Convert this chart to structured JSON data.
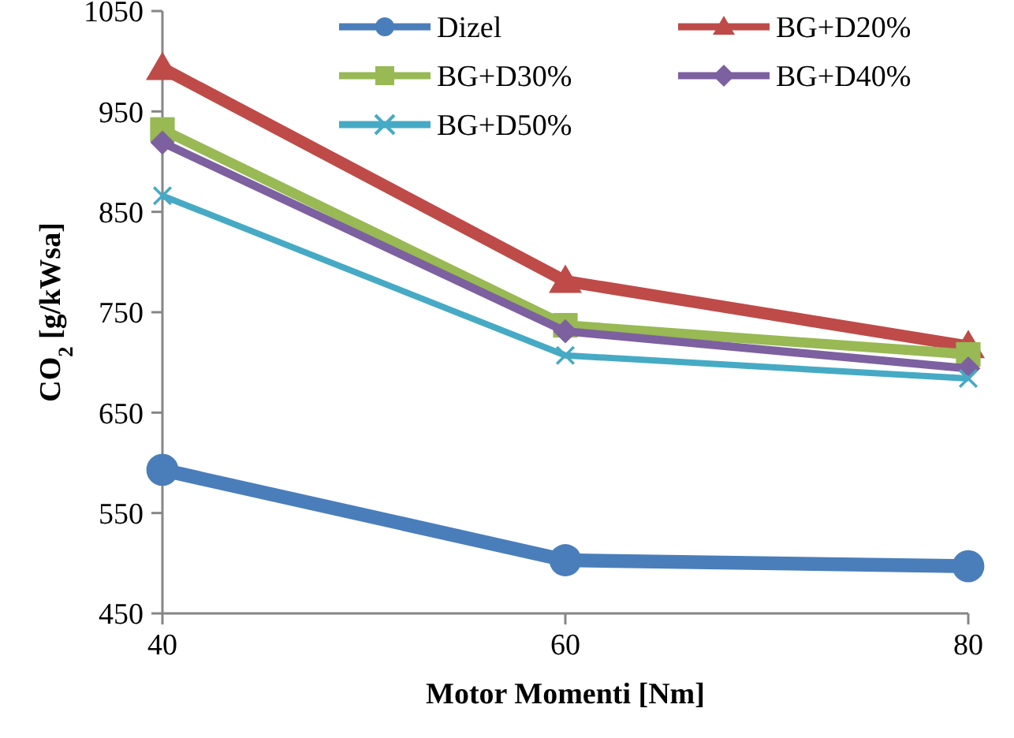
{
  "chart_data": {
    "type": "line",
    "xlabel": "Motor Momenti [Nm]",
    "ylabel": "CO$_{2}$ [g/kWsa]",
    "x": [
      40,
      60,
      80
    ],
    "xlim": [
      40,
      80
    ],
    "xticks": [
      40,
      60,
      80
    ],
    "ylim": [
      450,
      1050
    ],
    "yticks": [
      450,
      550,
      650,
      750,
      850,
      950,
      1050
    ],
    "grid": false,
    "legend": "top right",
    "series": [
      {
        "name": "Dizel",
        "color": "#4a7ebb",
        "marker": "circle",
        "values": [
          593,
          503,
          497
        ]
      },
      {
        "name": "BG+D20%",
        "color": "#be4b48",
        "marker": "triangle",
        "values": [
          993,
          781,
          716
        ]
      },
      {
        "name": "BG+D30%",
        "color": "#98b954",
        "marker": "square",
        "values": [
          932,
          737,
          708
        ]
      },
      {
        "name": "BG+D40%",
        "color": "#7d60a0",
        "marker": "diamond",
        "values": [
          919,
          731,
          694
        ]
      },
      {
        "name": "BG+D50%",
        "color": "#46aac5",
        "marker": "cross",
        "values": [
          866,
          707,
          684
        ]
      }
    ]
  }
}
